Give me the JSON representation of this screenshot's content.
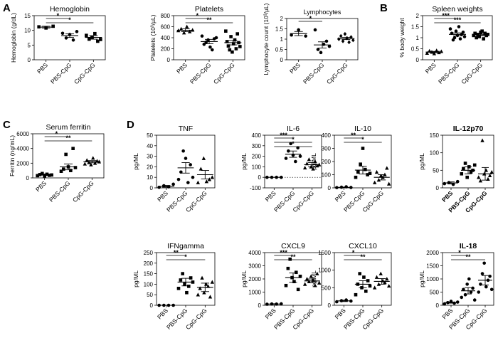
{
  "panel_letters": [
    "A",
    "B",
    "C",
    "D"
  ],
  "chart_data": [
    {
      "id": "hemoglobin",
      "panel": "A",
      "type": "scatter",
      "title": "Hemoglobin",
      "title_bold": false,
      "ylabel": "Hemoglobin (g/dL)",
      "ylim": [
        0,
        15
      ],
      "yticks": [
        0,
        5,
        10,
        15
      ],
      "categories": [
        "PBS",
        "PBS-CpG",
        "CpG-CpG"
      ],
      "tick_bold": false,
      "markers": [
        "square",
        "circle",
        "square"
      ],
      "points": [
        [
          11.2,
          10.8,
          11.4
        ],
        [
          9.0,
          7.4,
          8.6,
          6.7,
          9.6
        ],
        [
          8.3,
          7.0,
          7.6,
          8.9,
          6.3,
          6.9
        ]
      ],
      "means": [
        11.1,
        8.2,
        7.6
      ],
      "sems": [
        0.3,
        0.6,
        0.6
      ],
      "sig": [
        {
          "from": 0,
          "to": 1,
          "label": "*"
        },
        {
          "from": 0,
          "to": 2,
          "label": "*"
        }
      ]
    },
    {
      "id": "platelets",
      "panel": "A",
      "type": "scatter",
      "title": "Platelets",
      "title_bold": false,
      "ylabel": "Platelets (10³/µL)",
      "ylim": [
        0,
        800
      ],
      "yticks": [
        0,
        200,
        400,
        600,
        800
      ],
      "categories": [
        "PBS",
        "PBS-CpG",
        "CpG-CpG"
      ],
      "tick_bold": false,
      "markers": [
        "triangle",
        "circle",
        "square"
      ],
      "points": [
        [
          530,
          560,
          490,
          600,
          510,
          540
        ],
        [
          430,
          280,
          320,
          360,
          230,
          180,
          380,
          400
        ],
        [
          520,
          330,
          250,
          180,
          420,
          140,
          290,
          360,
          200,
          470,
          310,
          240
        ]
      ],
      "means": [
        535,
        330,
        310
      ],
      "sems": [
        25,
        40,
        40
      ],
      "sig": [
        {
          "from": 0,
          "to": 1,
          "label": "*"
        },
        {
          "from": 0,
          "to": 2,
          "label": "**"
        }
      ]
    },
    {
      "id": "lymphocytes",
      "panel": "A",
      "type": "scatter",
      "title": "Lymphocytes",
      "title_bold": false,
      "title_size": 9,
      "ylabel": "Lymphocyte count (10³/µL)",
      "ylim": [
        0,
        2.0
      ],
      "yticks": [
        0.0,
        0.5,
        1.0,
        1.5,
        2.0
      ],
      "categories": [
        "PBS",
        "PBS-CpG",
        "CpG-CpG"
      ],
      "tick_bold": false,
      "markers": [
        "circle",
        "circle",
        "diamond"
      ],
      "points": [
        [
          1.2,
          1.45,
          1.15
        ],
        [
          1.45,
          0.5,
          0.35,
          0.75,
          0.9,
          0.65
        ],
        [
          1.0,
          1.15,
          0.9,
          1.25,
          1.05,
          0.85,
          1.1,
          0.95
        ]
      ],
      "means": [
        1.27,
        0.72,
        1.03
      ],
      "sems": [
        0.1,
        0.15,
        0.05
      ],
      "sig": [
        {
          "from": 0,
          "to": 1,
          "label": "*"
        }
      ]
    },
    {
      "id": "spleen",
      "panel": "B",
      "type": "scatter",
      "title": "Spleen weights",
      "title_bold": false,
      "ylabel": "% body weight",
      "ylim": [
        0,
        2.0
      ],
      "yticks": [
        0.0,
        0.5,
        1.0,
        1.5,
        2.0
      ],
      "categories": [
        "PBS",
        "PBS-CpG",
        "CpG-CpG"
      ],
      "tick_bold": false,
      "markers": [
        "triangle",
        "circle",
        "square"
      ],
      "points": [
        [
          0.3,
          0.4,
          0.35,
          0.28,
          0.42,
          0.33,
          0.38
        ],
        [
          1.4,
          1.2,
          0.9,
          1.0,
          1.3,
          1.1,
          1.5,
          0.95,
          1.15,
          1.25,
          1.05
        ],
        [
          1.1,
          1.2,
          1.0,
          1.15,
          1.05,
          1.25,
          1.3,
          0.95,
          1.2,
          1.1,
          1.15
        ]
      ],
      "means": [
        0.35,
        1.15,
        1.13
      ],
      "sems": [
        0.03,
        0.07,
        0.04
      ],
      "sig": [
        {
          "from": 0,
          "to": 1,
          "label": "***"
        },
        {
          "from": 0,
          "to": 2,
          "label": "***"
        }
      ]
    },
    {
      "id": "ferritin",
      "panel": "C",
      "type": "scatter",
      "title": "Serum ferritin",
      "title_bold": false,
      "ylabel": "Ferritin (ng/mL)",
      "ylim": [
        0,
        6000
      ],
      "yticks": [
        0,
        2000,
        4000,
        6000
      ],
      "categories": [
        "PBS",
        "PBS-CpG",
        "CpG-CpG"
      ],
      "tick_bold": false,
      "markers": [
        "square",
        "square",
        "triangle"
      ],
      "points": [
        [
          300,
          450,
          600,
          250,
          500,
          350,
          400
        ],
        [
          900,
          1200,
          3200,
          1500,
          1000,
          4000,
          1400
        ],
        [
          1900,
          2400,
          2100,
          1800,
          2700,
          2000,
          2300,
          2200
        ]
      ],
      "means": [
        450,
        1500,
        2200
      ],
      "sems": [
        80,
        400,
        150
      ],
      "sig": [
        {
          "from": 0,
          "to": 1,
          "label": "*"
        },
        {
          "from": 0,
          "to": 2,
          "label": "**"
        }
      ]
    },
    {
      "id": "tnf",
      "panel": "D",
      "type": "scatter",
      "title": "TNF",
      "title_bold": false,
      "ylabel": "pg/ML",
      "ylim": [
        0,
        50
      ],
      "yticks": [
        0,
        10,
        20,
        30,
        40,
        50
      ],
      "categories": [
        "PBS",
        "PBS-CpG",
        "CpG-CpG"
      ],
      "tick_bold": false,
      "markers": [
        "circle",
        "circle",
        "triangle"
      ],
      "points": [
        [
          0.5,
          2.0,
          1.0,
          3.5
        ],
        [
          8,
          15,
          35,
          28,
          5,
          22,
          10
        ],
        [
          5,
          18,
          28,
          6,
          8,
          10
        ]
      ],
      "means": [
        1.5,
        19,
        12.5
      ],
      "sems": [
        0.8,
        5,
        4
      ],
      "sig": []
    },
    {
      "id": "il6",
      "panel": "D",
      "type": "scatter",
      "title": "IL-6",
      "title_bold": false,
      "ylabel": "pg/ML",
      "ylim": [
        -100,
        400
      ],
      "yticks": [
        -100,
        0,
        100,
        200,
        300,
        400
      ],
      "categories": [
        "PBS",
        "PBS-CpG",
        "CpG-CpG"
      ],
      "tick_bold": false,
      "markers": [
        "circle",
        "circle",
        "triangle"
      ],
      "points": [
        [
          0,
          0,
          0,
          0
        ],
        [
          180,
          250,
          320,
          210,
          150,
          280,
          200
        ],
        [
          90,
          130,
          170,
          100,
          80,
          150,
          110,
          120
        ]
      ],
      "means": [
        0,
        220,
        120
      ],
      "sems": [
        0,
        30,
        20
      ],
      "zero_line": true,
      "sig": [
        {
          "from": 0,
          "to": 1,
          "label": "***"
        },
        {
          "from": 0,
          "to": 2,
          "label": "*"
        },
        {
          "from": 0,
          "to": 2,
          "label": "*"
        }
      ]
    },
    {
      "id": "il10",
      "panel": "D",
      "type": "scatter",
      "title": "IL-10",
      "title_bold": false,
      "ylabel": "pg/ML",
      "ylim": [
        0,
        400
      ],
      "yticks": [
        0,
        100,
        200,
        300,
        400
      ],
      "categories": [
        "PBS",
        "PBS-CpG",
        "CpG-CpG"
      ],
      "tick_bold": false,
      "markers": [
        "circle",
        "square",
        "triangle"
      ],
      "points": [
        [
          2,
          5,
          8,
          3
        ],
        [
          80,
          120,
          180,
          300,
          140,
          100,
          110
        ],
        [
          40,
          120,
          60,
          90,
          80,
          100,
          150,
          30
        ]
      ],
      "means": [
        4,
        135,
        80
      ],
      "sems": [
        2,
        30,
        20
      ],
      "sig": [
        {
          "from": 0,
          "to": 1,
          "label": "**"
        },
        {
          "from": 0,
          "to": 2,
          "label": "*"
        }
      ]
    },
    {
      "id": "il12p70",
      "panel": "D",
      "type": "scatter",
      "title": "IL-12p70",
      "title_bold": true,
      "ylabel": "pg/ML",
      "ylim": [
        0,
        150
      ],
      "yticks": [
        0,
        50,
        100,
        150
      ],
      "categories": [
        "PBS",
        "PBS-CpG",
        "CpG-CpG"
      ],
      "tick_bold": true,
      "markers": [
        "circle",
        "square",
        "triangle"
      ],
      "points": [
        [
          12,
          15,
          10,
          18
        ],
        [
          40,
          55,
          70,
          30,
          60,
          45,
          50,
          65
        ],
        [
          30,
          20,
          135,
          40,
          50,
          25,
          35,
          45
        ]
      ],
      "means": [
        14,
        50,
        40
      ],
      "sems": [
        3,
        10,
        18
      ],
      "sig": []
    },
    {
      "id": "ifngamma",
      "panel": "D",
      "type": "scatter",
      "title": "IFNgamma",
      "title_bold": false,
      "ylabel": "pg/ML",
      "ylim": [
        0,
        250
      ],
      "yticks": [
        0,
        50,
        100,
        150,
        200,
        250
      ],
      "categories": [
        "PBS",
        "PBS-CpG",
        "CpG-CpG"
      ],
      "tick_bold": false,
      "markers": [
        "circle",
        "square",
        "triangle"
      ],
      "points": [
        [
          0,
          0,
          0,
          0
        ],
        [
          80,
          120,
          150,
          100,
          60,
          90,
          130,
          110
        ],
        [
          50,
          80,
          130,
          60,
          100,
          90,
          40,
          110
        ]
      ],
      "means": [
        0,
        110,
        85
      ],
      "sems": [
        0,
        18,
        20
      ],
      "sig": [
        {
          "from": 0,
          "to": 1,
          "label": "**"
        },
        {
          "from": 0,
          "to": 2,
          "label": "*"
        }
      ]
    },
    {
      "id": "cxcl9",
      "panel": "D",
      "type": "scatter",
      "title": "CXCL9",
      "title_bold": false,
      "ylabel": "pg/ML",
      "ylim": [
        0,
        4000
      ],
      "yticks": [
        0,
        1000,
        2000,
        3000,
        4000
      ],
      "categories": [
        "PBS",
        "PBS-CpG",
        "CpG-CpG"
      ],
      "tick_bold": false,
      "markers": [
        "circle",
        "square",
        "triangle"
      ],
      "points": [
        [
          80,
          100,
          90,
          110
        ],
        [
          1500,
          2800,
          3500,
          2100,
          1800,
          2500,
          1200,
          2200
        ],
        [
          1600,
          2000,
          1800,
          2200,
          1900,
          1500,
          2400,
          1700
        ]
      ],
      "means": [
        95,
        2100,
        1850
      ],
      "sems": [
        20,
        350,
        150
      ],
      "sig": [
        {
          "from": 0,
          "to": 1,
          "label": "***"
        },
        {
          "from": 0,
          "to": 2,
          "label": "**"
        }
      ]
    },
    {
      "id": "cxcl10",
      "panel": "D",
      "type": "scatter",
      "title": "CXCL10",
      "title_bold": false,
      "ylabel": "pg/ML",
      "ylim": [
        0,
        1500
      ],
      "yticks": [
        0,
        500,
        1000,
        1500
      ],
      "categories": [
        "PBS",
        "PBS-CpG",
        "CpG-CpG"
      ],
      "tick_bold": false,
      "markers": [
        "circle",
        "square",
        "triangle"
      ],
      "points": [
        [
          100,
          130,
          150,
          120
        ],
        [
          300,
          600,
          900,
          500,
          800,
          400,
          700,
          550
        ],
        [
          500,
          800,
          600,
          900,
          700,
          650,
          750,
          550
        ]
      ],
      "means": [
        125,
        600,
        680
      ],
      "sems": [
        20,
        100,
        80
      ],
      "sig": [
        {
          "from": 0,
          "to": 1,
          "label": "*"
        },
        {
          "from": 0,
          "to": 2,
          "label": "**"
        }
      ]
    },
    {
      "id": "il18",
      "panel": "D",
      "type": "scatter",
      "title": "IL-18",
      "title_bold": true,
      "ylabel": "pg/ML",
      "ylim": [
        0,
        2000
      ],
      "yticks": [
        0,
        500,
        1000,
        1500,
        2000
      ],
      "categories": [
        "PBS",
        "PBS-CpG",
        "CpG-CpG"
      ],
      "tick_bold": false,
      "markers": [
        "circle",
        "circle",
        "circle"
      ],
      "points": [
        [
          50,
          100,
          150,
          80,
          120
        ],
        [
          300,
          600,
          400,
          800,
          1000,
          500,
          650,
          200
        ],
        [
          500,
          800,
          1200,
          1600,
          700,
          950,
          1100,
          600
        ]
      ],
      "means": [
        100,
        550,
        950
      ],
      "sems": [
        20,
        120,
        180
      ],
      "sig": [
        {
          "from": 0,
          "to": 1,
          "label": "*"
        },
        {
          "from": 0,
          "to": 2,
          "label": "**"
        }
      ]
    }
  ]
}
